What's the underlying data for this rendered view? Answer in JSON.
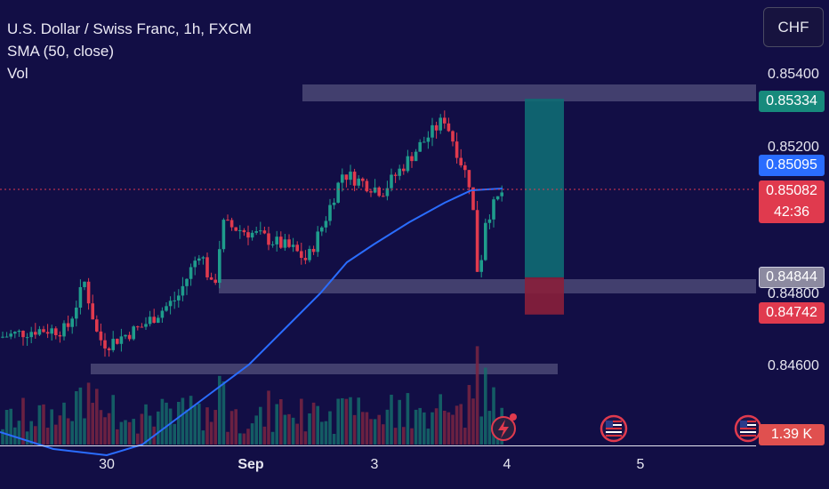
{
  "legend": {
    "title": "U.S. Dollar / Swiss Franc, 1h, FXCM",
    "indicator": "SMA (50, close)",
    "volume": "Vol"
  },
  "currency_button": "CHF",
  "price_axis": [
    "0.85400",
    "0.85200",
    "0.84800",
    "0.84600"
  ],
  "price_tags": {
    "target": "0.85334",
    "sma": "0.85095",
    "last": "0.85082",
    "countdown": "42:36",
    "entry": "0.84844",
    "stop": "0.84742",
    "volume": "1.39 K"
  },
  "time_axis": [
    "30",
    "Sep",
    "3",
    "4",
    "5"
  ],
  "colors": {
    "background": "#120e45",
    "up": "#1f9c8c",
    "down": "#e03a4e",
    "sma": "#2a6dff",
    "target_zone": "#0f6b73",
    "stop_zone": "#8a1f3a",
    "zone_band": "#6a6890"
  },
  "icons": [
    "lightning-event-icon",
    "us-flag-event-icon",
    "us-flag-event-icon"
  ],
  "chart_data": {
    "type": "candlestick",
    "price_range": [
      0.8452,
      0.8548
    ],
    "levels": {
      "target": 0.85334,
      "entry": 0.84844,
      "stop": 0.84742,
      "last": 0.85082,
      "sma": 0.85095
    }
  }
}
